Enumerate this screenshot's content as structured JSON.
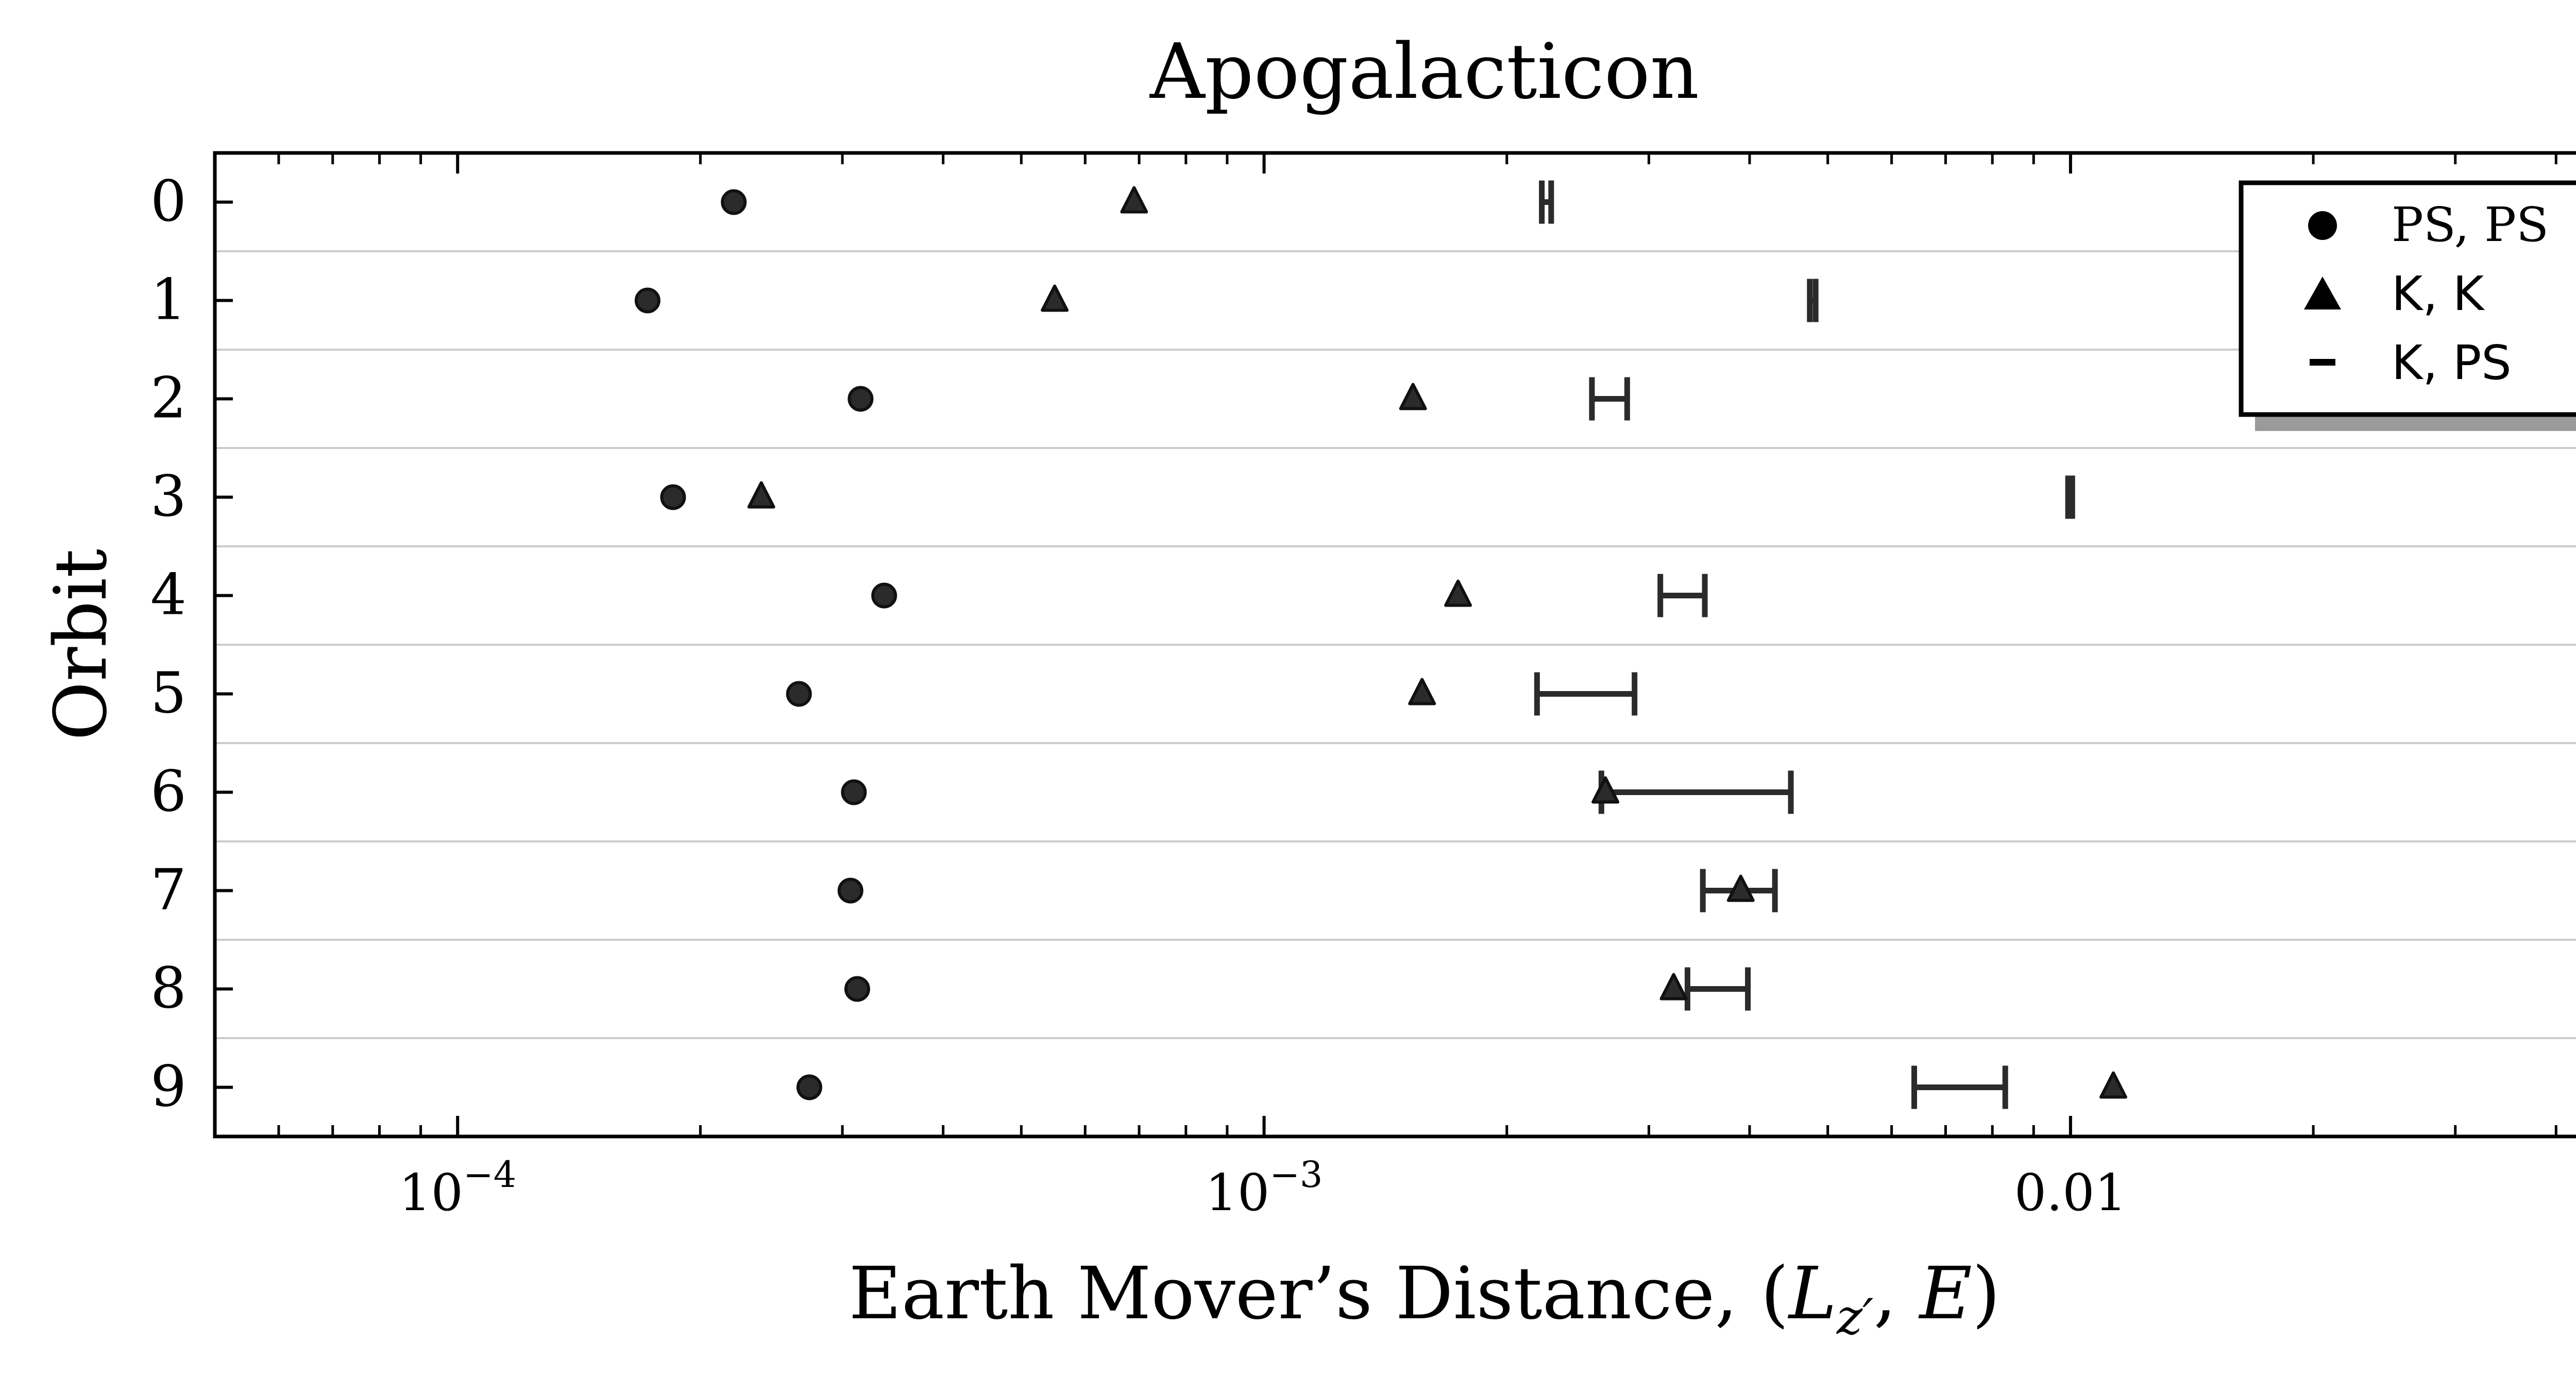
{
  "chart_data": {
    "type": "scatter",
    "title": "Apogalacticon",
    "xlabel": "Earth Mover’s Distance, (L_z′, E)",
    "xlabel_parts": {
      "prefix": "Earth Mover’s Distance, (",
      "var1": "L",
      "sub": "z′",
      "sep": ", ",
      "var2": "E",
      "suffix": ")"
    },
    "ylabel": "Orbit",
    "xscale": "log",
    "xlim": [
      5e-05,
      0.05
    ],
    "x_ticks": [
      {
        "value": 0.0001,
        "base": "10",
        "exp": "−4"
      },
      {
        "value": 0.001,
        "base": "10",
        "exp": "−3"
      },
      {
        "value": 0.01,
        "label": "0.01"
      }
    ],
    "categories": [
      "0",
      "1",
      "2",
      "3",
      "4",
      "5",
      "6",
      "7",
      "8",
      "9"
    ],
    "grid": "horizontal",
    "legend_position": "top-right",
    "colors": {
      "marker": "#2b2b2b",
      "grid": "#cccccc",
      "axis": "#000000",
      "shadow": "#9a9a9a"
    },
    "series": [
      {
        "name": "PS, PS",
        "marker": "circle",
        "values": [
          0.00022,
          0.000172,
          0.000316,
          0.000185,
          0.000338,
          0.000265,
          0.00031,
          0.000307,
          0.000313,
          0.000273
        ]
      },
      {
        "name": "K, K",
        "marker": "triangle",
        "values": [
          0.00069,
          0.00055,
          0.00153,
          0.000238,
          0.00174,
          0.00157,
          0.00265,
          0.0039,
          0.00322,
          0.0113
        ]
      },
      {
        "name": "K, PS",
        "marker": "interval",
        "low": [
          0.00221,
          0.00475,
          0.00255,
          0.00993,
          0.0031,
          0.00218,
          0.00262,
          0.0035,
          0.00335,
          0.0064
        ],
        "high": [
          0.00227,
          0.00483,
          0.00282,
          0.01005,
          0.00352,
          0.00288,
          0.0045,
          0.0043,
          0.00398,
          0.0083
        ]
      }
    ]
  }
}
